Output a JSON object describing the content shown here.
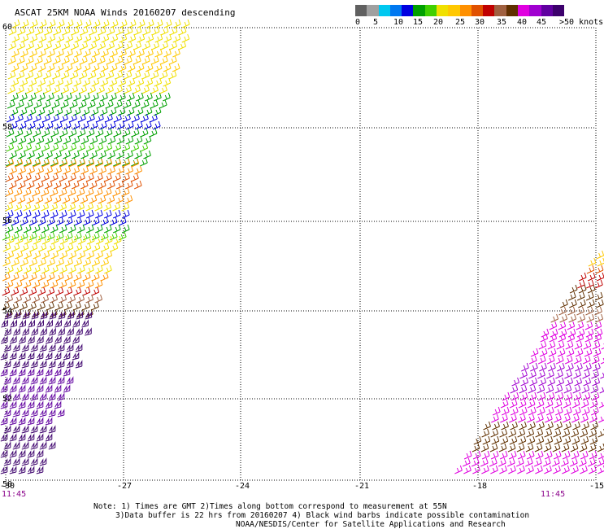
{
  "header": {
    "title": "ASCAT 25KM NOAA Winds 20160207 descending"
  },
  "color_scale": {
    "colors": [
      "#606060",
      "#a0a0a0",
      "#00c8f0",
      "#0078f0",
      "#0000e0",
      "#00a000",
      "#40d000",
      "#f0e000",
      "#ffc800",
      "#ff9000",
      "#e05000",
      "#c00000",
      "#a06040",
      "#603000",
      "#e000e0",
      "#a000d0",
      "#6000a0",
      "#3c006c"
    ],
    "labels": [
      "0",
      "5",
      "10",
      "15",
      "20",
      "25",
      "30",
      "35",
      "40",
      "45",
      ">50 knots"
    ]
  },
  "map": {
    "lat_labels": [
      "60",
      "58",
      "56",
      "54",
      "52",
      "50"
    ],
    "lon_labels": [
      "-30",
      "-27",
      "-24",
      "-21",
      "-18",
      "-15"
    ],
    "time_labels": [
      "11:45",
      "11:45"
    ]
  },
  "notes": {
    "line1": "Note: 1) Times are GMT 2)Times along bottom correspond to measurement at 55N",
    "line2": "3)Data buffer is 22 hrs from 20160207 4) Black wind barbs indicate possible contamination",
    "line3": "NOAA/NESDIS/Center for Satellite Applications and Research"
  }
}
